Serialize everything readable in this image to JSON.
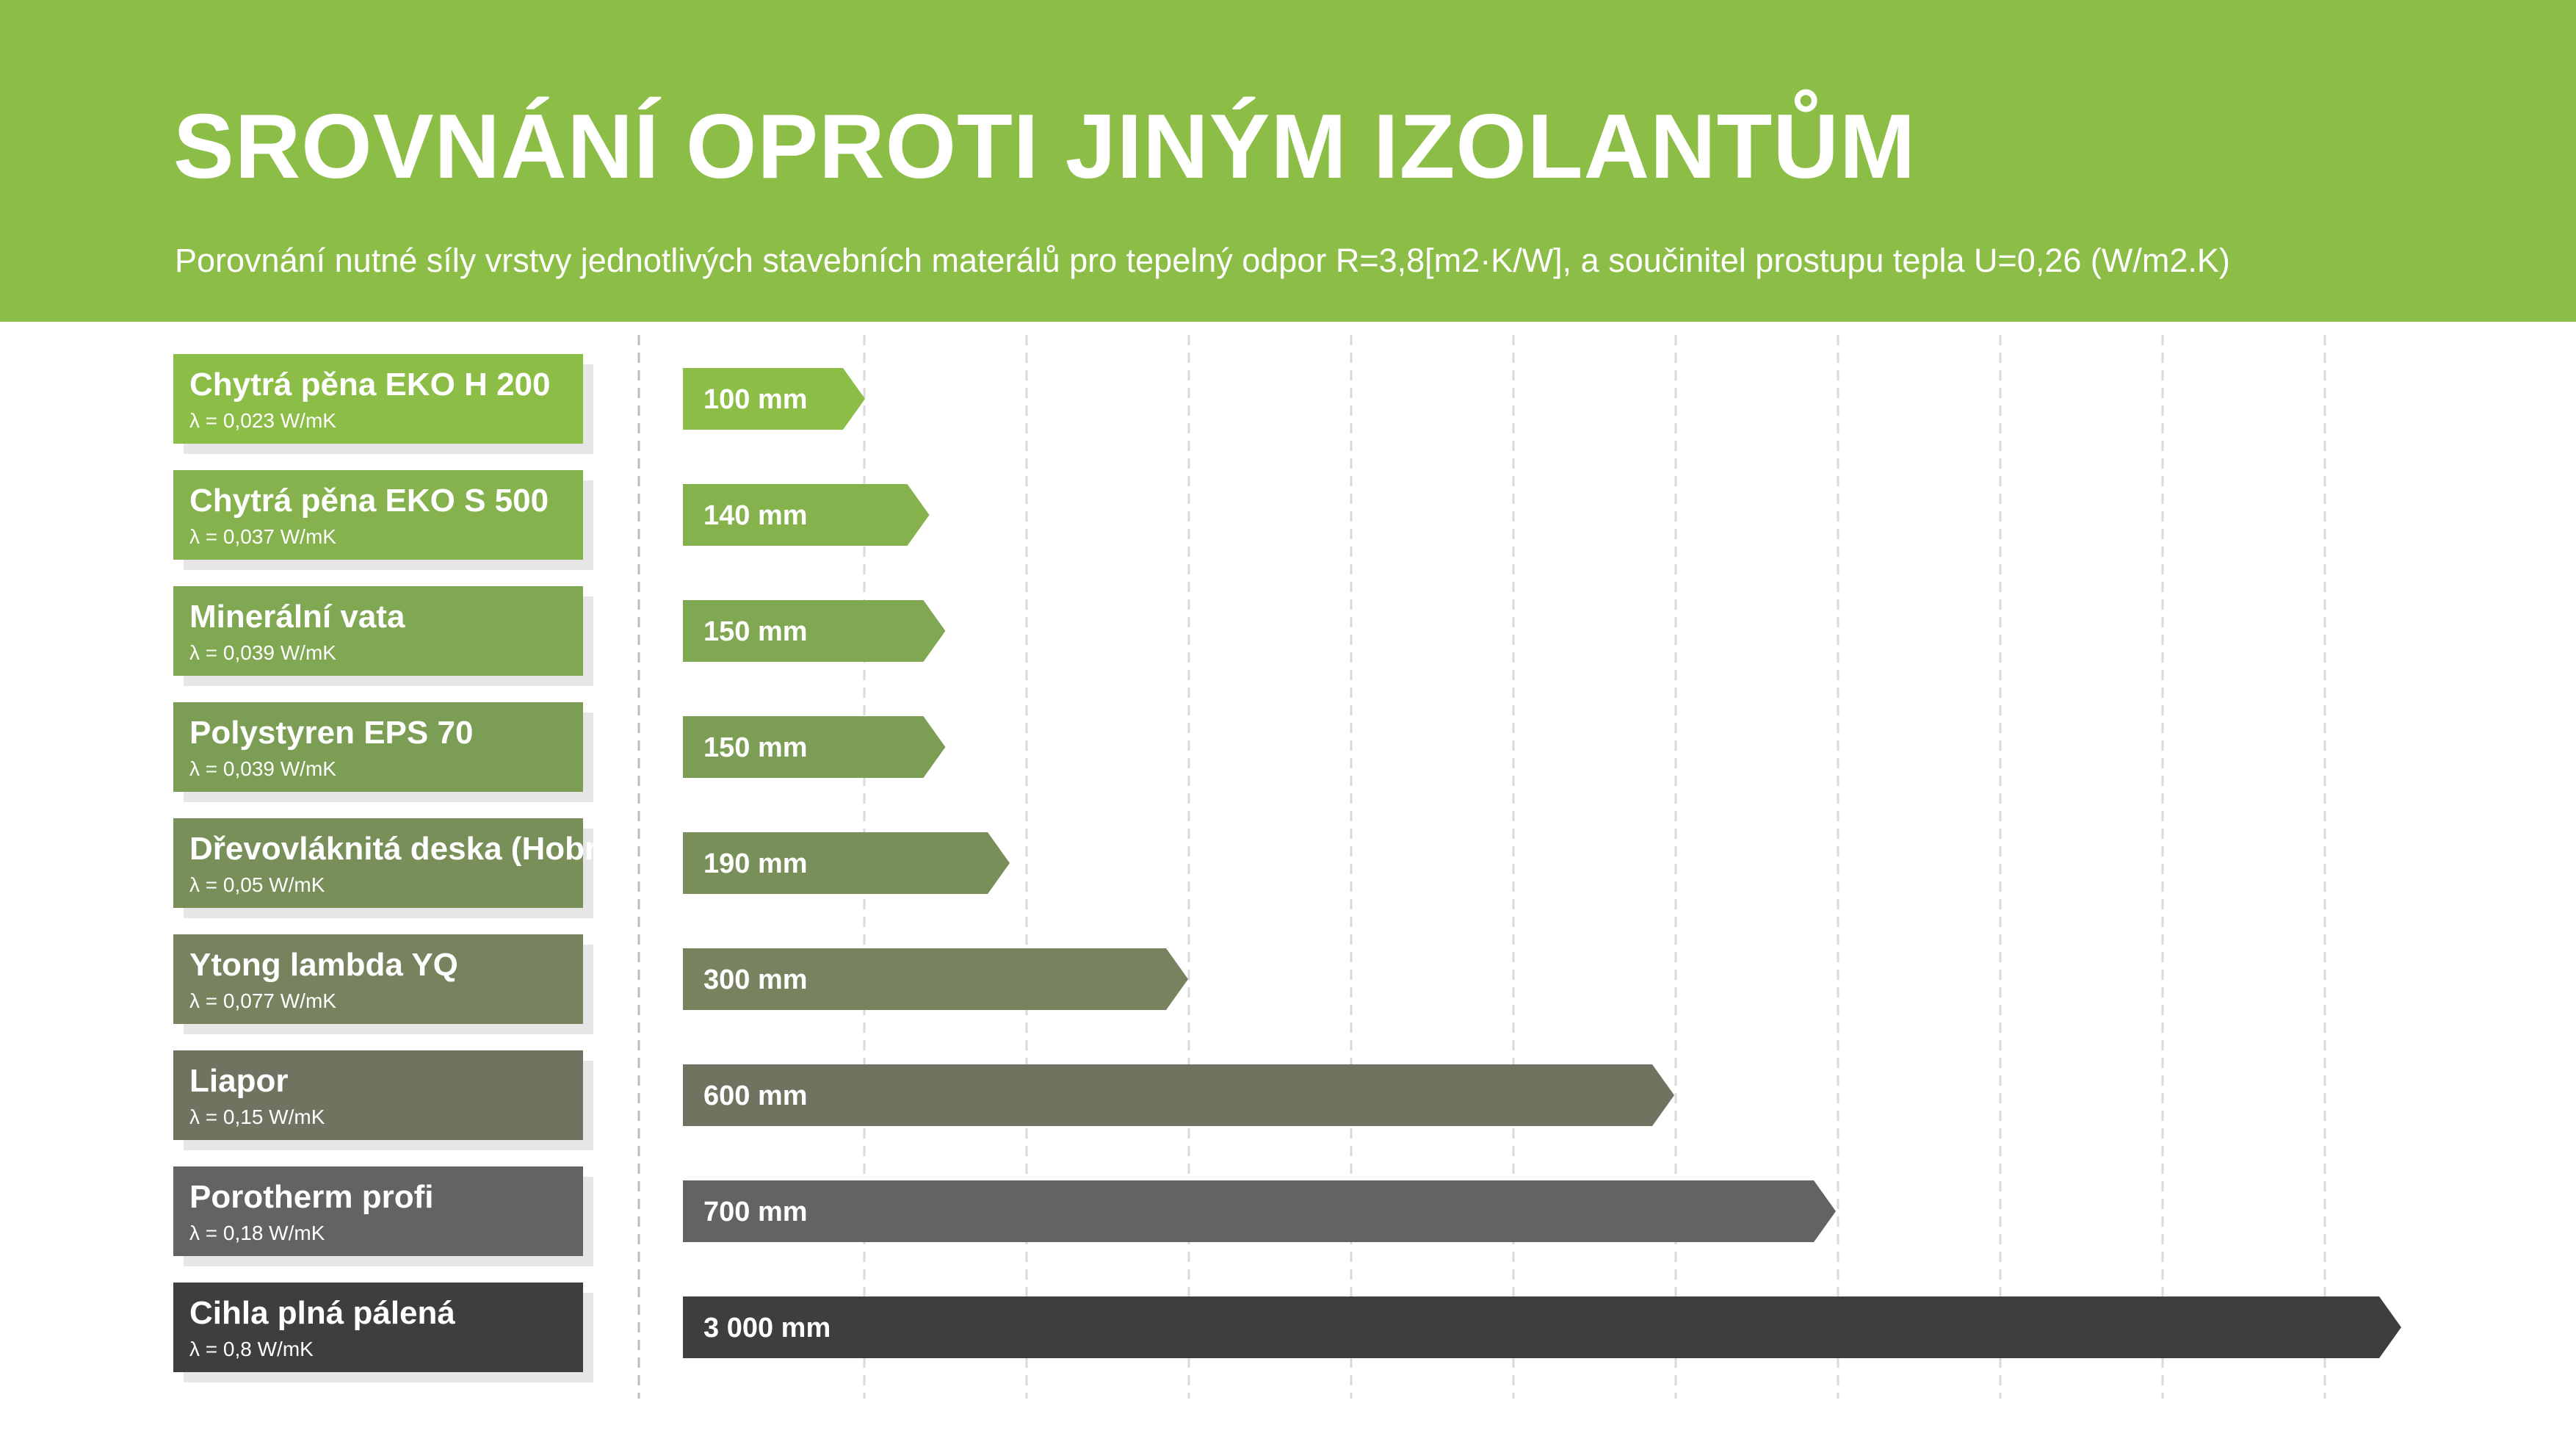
{
  "header": {
    "title": "SROVNÁNÍ OPROTI JINÝM IZOLANTŮM",
    "subtitle": "Porovnání nutné síly vrstvy jednotlivých stavebních materálů pro tepelný odpor R=3,8[m2·K/W], a součinitel prostupu tepla U=0,26 (W/m2.K)"
  },
  "colors": {
    "header_bg": "#8cbe47",
    "gradient": [
      "#8cbe47",
      "#85b24c",
      "#80a751",
      "#7c9e54",
      "#798f59",
      "#76835e",
      "#6f7461",
      "#636363",
      "#3e3e3e"
    ]
  },
  "chart_data": {
    "type": "bar",
    "orientation": "horizontal",
    "title": "SROVNÁNÍ OPROTI JINÝM IZOLANTŮM",
    "categories": [
      "Chytrá pěna EKO H 200",
      "Chytrá pěna EKO S 500",
      "Minerální vata",
      "Polystyren EPS 70",
      "Dřevovláknitá deska (Hobra)",
      "Ytong lambda YQ",
      "Liapor",
      "Porotherm profi",
      "Cihla plná pálená"
    ],
    "lambda_labels": [
      "λ = 0,023 W/mK",
      "λ = 0,037 W/mK",
      "λ = 0,039 W/mK",
      "λ = 0,039 W/mK",
      "λ = 0,05 W/mK",
      "λ = 0,077 W/mK",
      "λ = 0,15 W/mK",
      "λ = 0,18 W/mK",
      "λ = 0,8 W/mK"
    ],
    "values": [
      100,
      140,
      150,
      150,
      190,
      300,
      600,
      700,
      3000
    ],
    "value_labels": [
      "100 mm",
      "140 mm",
      "150 mm",
      "150 mm",
      "190 mm",
      "300 mm",
      "600 mm",
      "700 mm",
      "3 000 mm"
    ],
    "unit": "mm",
    "grid": true,
    "gridlines": 10,
    "legend": "none"
  }
}
